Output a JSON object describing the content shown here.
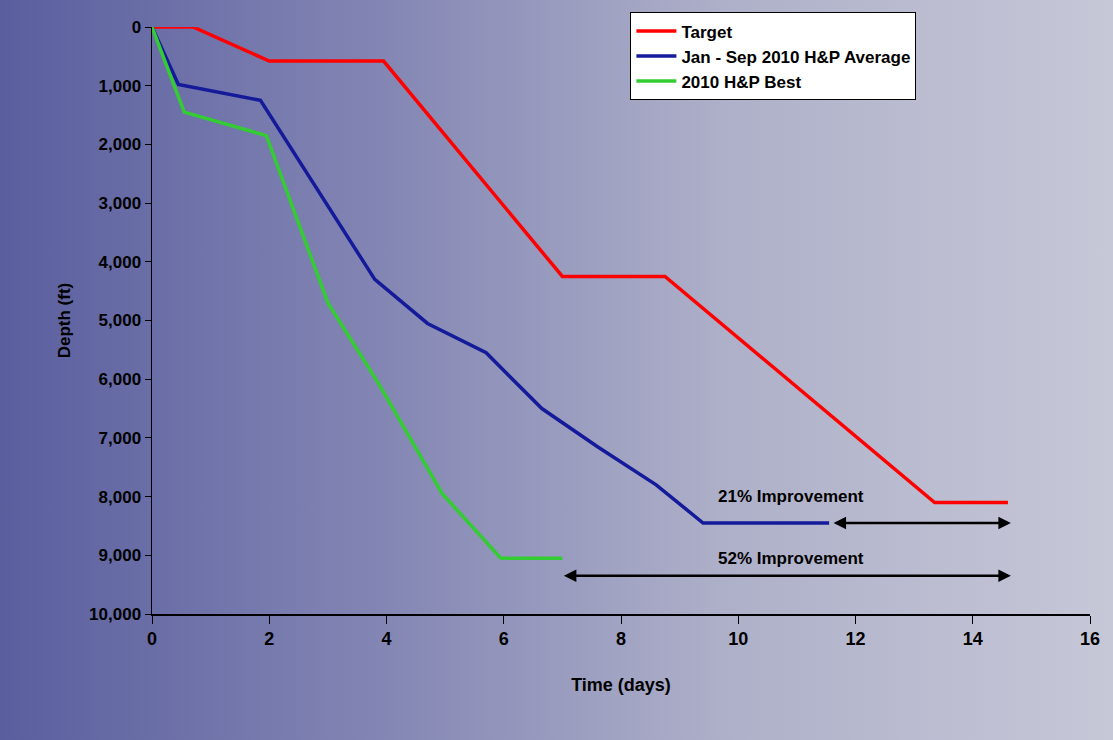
{
  "chart_data": {
    "type": "line",
    "x_label": "Time (days)",
    "y_label": "Depth (ft)",
    "xlim": [
      0,
      16
    ],
    "xticks": [
      0,
      2,
      4,
      6,
      8,
      10,
      12,
      14,
      16
    ],
    "ylim": [
      10000,
      0
    ],
    "yticks": [
      0,
      {
        "value": 1000,
        "label": "1,000"
      },
      {
        "value": 2000,
        "label": "2,000"
      },
      {
        "value": 3000,
        "label": "3,000"
      },
      {
        "value": 4000,
        "label": "4,000"
      },
      {
        "value": 5000,
        "label": "5,000"
      },
      {
        "value": 6000,
        "label": "6,000"
      },
      {
        "value": 7000,
        "label": "7,000"
      },
      {
        "value": 8000,
        "label": "8,000"
      },
      {
        "value": 9000,
        "label": "9,000"
      },
      {
        "value": 10000,
        "label": "10,000"
      }
    ],
    "grid": false,
    "legend": "top right",
    "series": [
      {
        "name": "Target",
        "color": "#ff0000",
        "x": [
          0,
          0.7,
          2.0,
          3.95,
          7.0,
          8.75,
          13.35,
          14.6
        ],
        "values": [
          0,
          0,
          580,
          580,
          4250,
          4250,
          8100,
          8100
        ]
      },
      {
        "name": "Jan - Sep 2010 H&P Average",
        "color": "#141a9a",
        "x": [
          0,
          0.45,
          1.85,
          3.0,
          3.8,
          4.7,
          5.7,
          6.65,
          7.6,
          8.6,
          9.4,
          11.55
        ],
        "values": [
          0,
          980,
          1250,
          3050,
          4300,
          5050,
          5550,
          6500,
          7150,
          7800,
          8450,
          8450
        ]
      },
      {
        "name": "2010 H&P Best",
        "color": "#33cc33",
        "x": [
          0,
          0.55,
          1.95,
          3.0,
          3.85,
          4.95,
          5.95,
          7.0
        ],
        "values": [
          0,
          1450,
          1850,
          4700,
          6050,
          7950,
          9050,
          9050
        ]
      }
    ],
    "annotations": [
      {
        "text": "21% Improvement",
        "x": 10.9,
        "y": 8000,
        "x_from": 11.6,
        "x_to": 14.65,
        "arrow_y": 8450
      },
      {
        "text": "52% Improvement",
        "x": 10.9,
        "y": 9050,
        "x_from": 7.0,
        "x_to": 14.65,
        "arrow_y": 9350
      }
    ]
  }
}
